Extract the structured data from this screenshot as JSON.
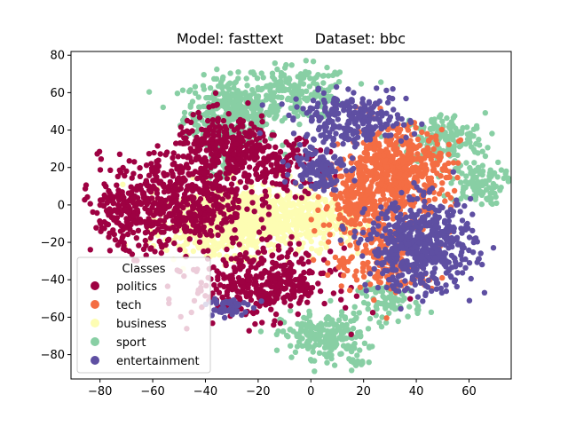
{
  "chart_data": {
    "type": "scatter",
    "title": "Model: fasttext       Dataset: bbc",
    "xlabel": "",
    "ylabel": "",
    "xlim": [
      -91,
      76
    ],
    "ylim": [
      -93,
      82
    ],
    "x_ticks": [
      -80,
      -60,
      -40,
      -20,
      0,
      20,
      40,
      60
    ],
    "y_ticks": [
      -80,
      -60,
      -40,
      -20,
      0,
      20,
      40,
      60,
      80
    ],
    "grid": false,
    "legend": {
      "title": "Classes",
      "placement": "lower-left"
    },
    "series": [
      {
        "name": "politics",
        "color": "#9e0142",
        "clusters": [
          {
            "cx": -52,
            "cy": 2,
            "sx": 14,
            "sy": 12,
            "n": 520
          },
          {
            "cx": -32,
            "cy": 30,
            "sx": 10,
            "sy": 9,
            "n": 320
          },
          {
            "cx": -18,
            "cy": -42,
            "sx": 13,
            "sy": 9,
            "n": 380
          },
          {
            "cx": -70,
            "cy": -8,
            "sx": 7,
            "sy": 9,
            "n": 110
          },
          {
            "cx": -10,
            "cy": 20,
            "sx": 8,
            "sy": 7,
            "n": 120
          }
        ]
      },
      {
        "name": "tech",
        "color": "#f46d43",
        "clusters": [
          {
            "cx": 32,
            "cy": 18,
            "sx": 10,
            "sy": 12,
            "n": 560
          },
          {
            "cx": 18,
            "cy": 2,
            "sx": 7,
            "sy": 9,
            "n": 180
          },
          {
            "cx": 28,
            "cy": -30,
            "sx": 10,
            "sy": 9,
            "n": 160
          }
        ]
      },
      {
        "name": "business",
        "color": "#fdfdb3",
        "clusters": [
          {
            "cx": -24,
            "cy": -8,
            "sx": 14,
            "sy": 9,
            "n": 760
          },
          {
            "cx": -40,
            "cy": -10,
            "sx": 8,
            "sy": 8,
            "n": 160
          },
          {
            "cx": 2,
            "cy": -8,
            "sx": 7,
            "sy": 7,
            "n": 140
          }
        ]
      },
      {
        "name": "sport",
        "color": "#88cfa4",
        "clusters": [
          {
            "cx": -30,
            "cy": 50,
            "sx": 9,
            "sy": 9,
            "n": 350
          },
          {
            "cx": -5,
            "cy": 60,
            "sx": 10,
            "sy": 7,
            "n": 190
          },
          {
            "cx": 50,
            "cy": 35,
            "sx": 8,
            "sy": 7,
            "n": 160
          },
          {
            "cx": 63,
            "cy": 12,
            "sx": 5,
            "sy": 6,
            "n": 110
          },
          {
            "cx": 5,
            "cy": -70,
            "sx": 8,
            "sy": 6,
            "n": 210
          },
          {
            "cx": 30,
            "cy": -52,
            "sx": 6,
            "sy": 5,
            "n": 80
          },
          {
            "cx": -36,
            "cy": 20,
            "sx": 3,
            "sy": 3,
            "n": 25
          },
          {
            "cx": 18,
            "cy": -84,
            "sx": 2,
            "sy": 1.5,
            "n": 15
          }
        ]
      },
      {
        "name": "entertainment",
        "color": "#5e4fa2",
        "clusters": [
          {
            "cx": 42,
            "cy": -22,
            "sx": 10,
            "sy": 12,
            "n": 560
          },
          {
            "cx": 15,
            "cy": 45,
            "sx": 11,
            "sy": 7,
            "n": 260
          },
          {
            "cx": 3,
            "cy": 20,
            "sx": 5,
            "sy": 6,
            "n": 110
          },
          {
            "cx": -32,
            "cy": -55,
            "sx": 4,
            "sy": 3,
            "n": 45
          }
        ]
      }
    ]
  }
}
